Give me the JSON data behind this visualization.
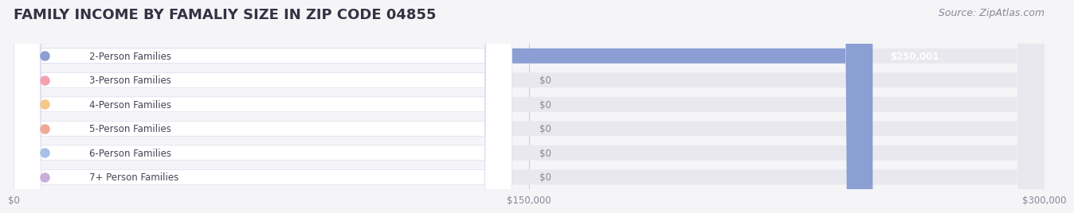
{
  "title": "FAMILY INCOME BY FAMALIY SIZE IN ZIP CODE 04855",
  "source": "Source: ZipAtlas.com",
  "categories": [
    "2-Person Families",
    "3-Person Families",
    "4-Person Families",
    "5-Person Families",
    "6-Person Families",
    "7+ Person Families"
  ],
  "values": [
    250001,
    0,
    0,
    0,
    0,
    0
  ],
  "bar_colors": [
    "#8b9fd4",
    "#f4a0b0",
    "#f5c98a",
    "#f0a898",
    "#a8c0e8",
    "#c8aed8"
  ],
  "xlim": [
    0,
    300000
  ],
  "xticks": [
    0,
    150000,
    300000
  ],
  "xtick_labels": [
    "$0",
    "$150,000",
    "$300,000"
  ],
  "background_color": "#f5f5f8",
  "bar_bg_color": "#e8e8ee",
  "title_fontsize": 13,
  "source_fontsize": 9,
  "label_fontsize": 8.5,
  "value_fontsize": 8.5
}
